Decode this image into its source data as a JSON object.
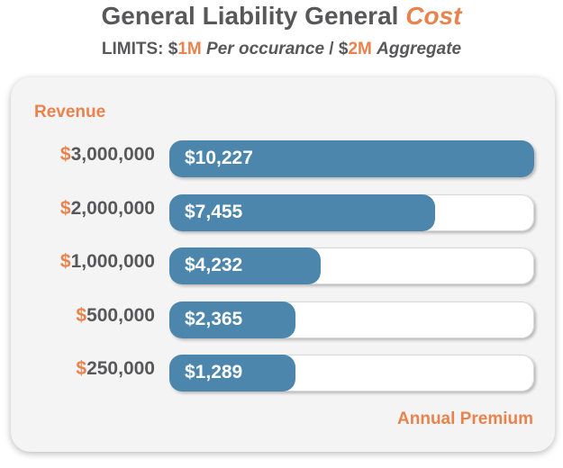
{
  "title": {
    "part1": "General Liability General",
    "part2": "Cost"
  },
  "subtitle": {
    "limits": "LIMITS:",
    "dollar1": "$",
    "amount1": "1M",
    "per": "Per occurance",
    "slash": "/",
    "dollar2": "$",
    "amount2": "2M",
    "aggregate": "Aggregate"
  },
  "colors": {
    "accent": "#e8834d",
    "bar": "#4c86ad",
    "text": "#58585a",
    "card": "#f4f4f4"
  },
  "chart_data": {
    "type": "bar",
    "orientation": "horizontal",
    "title": "General Liability General Cost",
    "subtitle": "LIMITS: $1M Per occurance / $2M Aggregate",
    "ylabel": "Revenue",
    "xlabel": "Annual Premium",
    "xlim": [
      0,
      10227
    ],
    "categories": [
      "$3,000,000",
      "$2,000,000",
      "$1,000,000",
      "$500,000",
      "$250,000"
    ],
    "values": [
      10227,
      7455,
      4232,
      2365,
      1289
    ],
    "value_labels": [
      "$10,227",
      "$7,455",
      "$4,232",
      "$2,365",
      "$1,289"
    ],
    "grid": false,
    "legend": "none"
  }
}
